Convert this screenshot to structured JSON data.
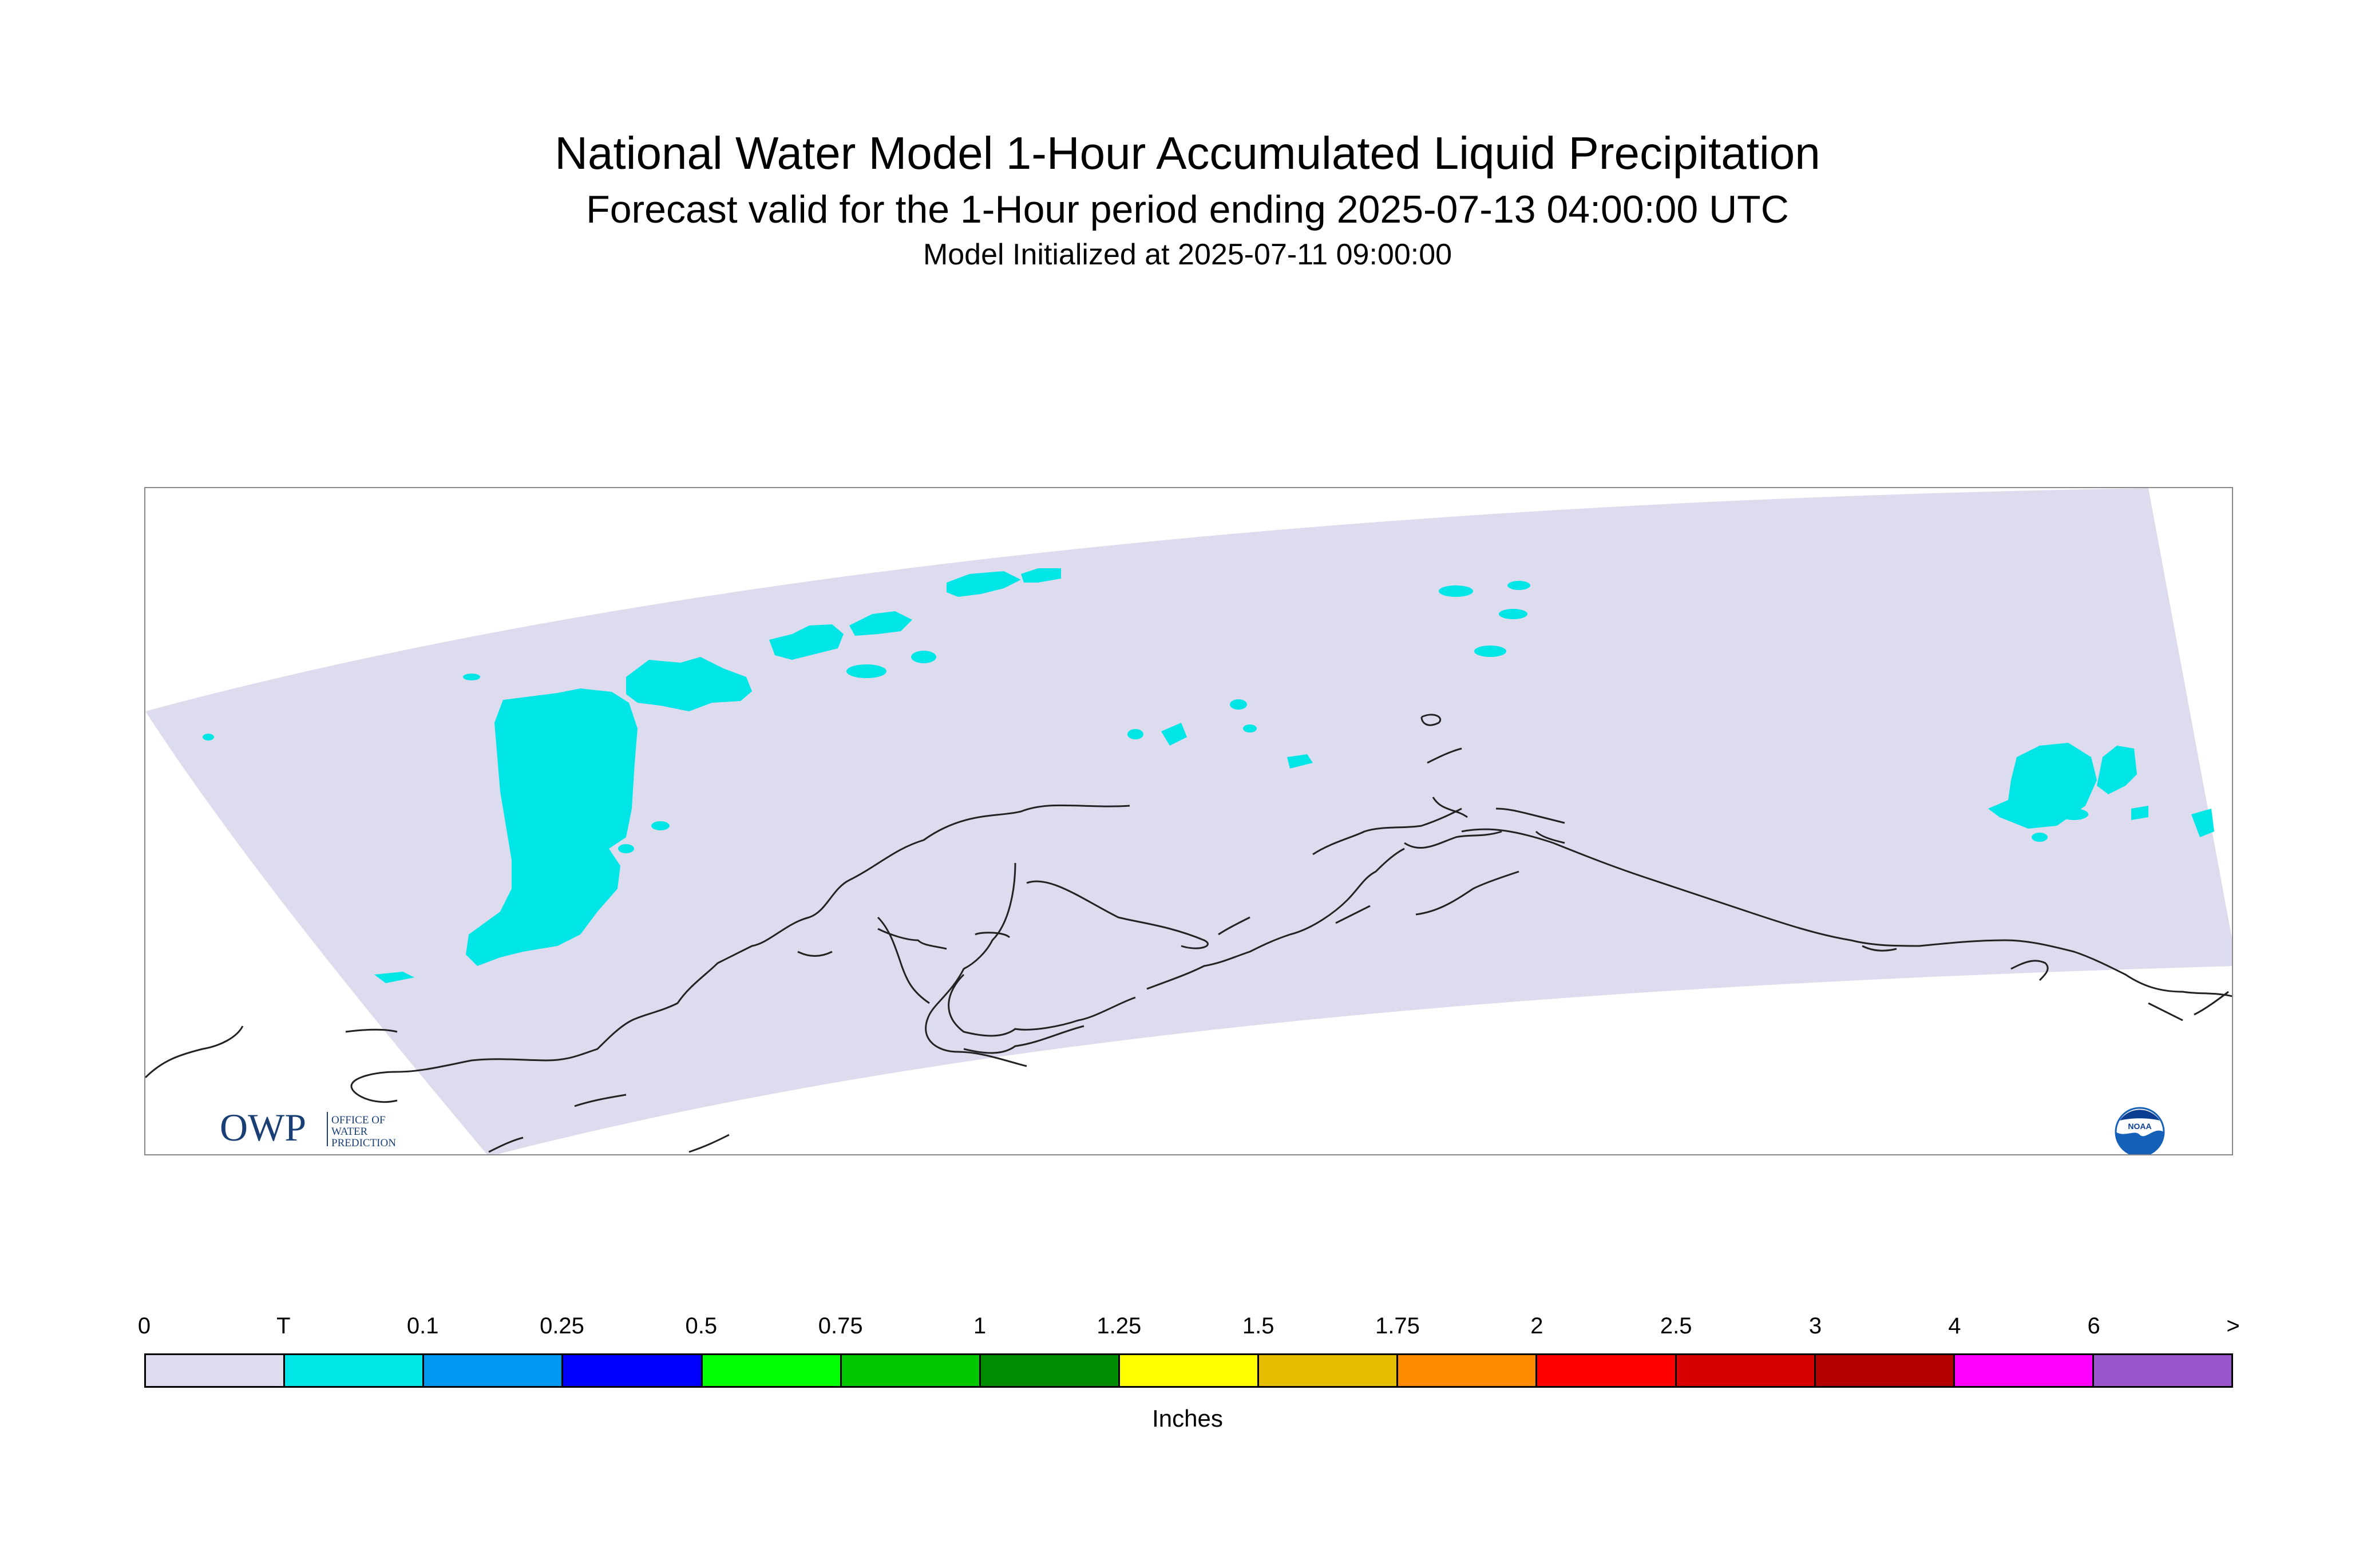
{
  "header": {
    "title": "National Water Model 1-Hour Accumulated Liquid Precipitation",
    "subtitle": "Forecast valid for the 1-Hour period ending 2025-07-13 04:00:00 UTC",
    "init_line": "Model Initialized at 2025-07-11 09:00:00"
  },
  "map": {
    "domain_fill_color": "#dcdcee",
    "precip_color": "#00e5e5",
    "coastline_color": "#222222",
    "icons": [
      "owp-logo",
      "noaa-logo"
    ]
  },
  "owp_logo": {
    "letters": "OWP",
    "line1": "OFFICE OF",
    "line2": "WATER",
    "line3": "PREDICTION",
    "color": "#1a3f75"
  },
  "noaa_logo": {
    "text": "NOAA",
    "color": "#1560b8"
  },
  "legend": {
    "units_label": "Inches",
    "ticks": [
      "0",
      "T",
      "0.1",
      "0.25",
      "0.5",
      "0.75",
      "1",
      "1.25",
      "1.5",
      "1.75",
      "2",
      "2.5",
      "3",
      "4",
      "6",
      ">"
    ],
    "colors": [
      "#dcdcee",
      "#00e5e5",
      "#0099f2",
      "#0000ff",
      "#00ff00",
      "#00c800",
      "#008c00",
      "#ffff00",
      "#e6be00",
      "#ff8c00",
      "#ff0000",
      "#d70000",
      "#b40000",
      "#ff00ff",
      "#9955cc"
    ]
  }
}
